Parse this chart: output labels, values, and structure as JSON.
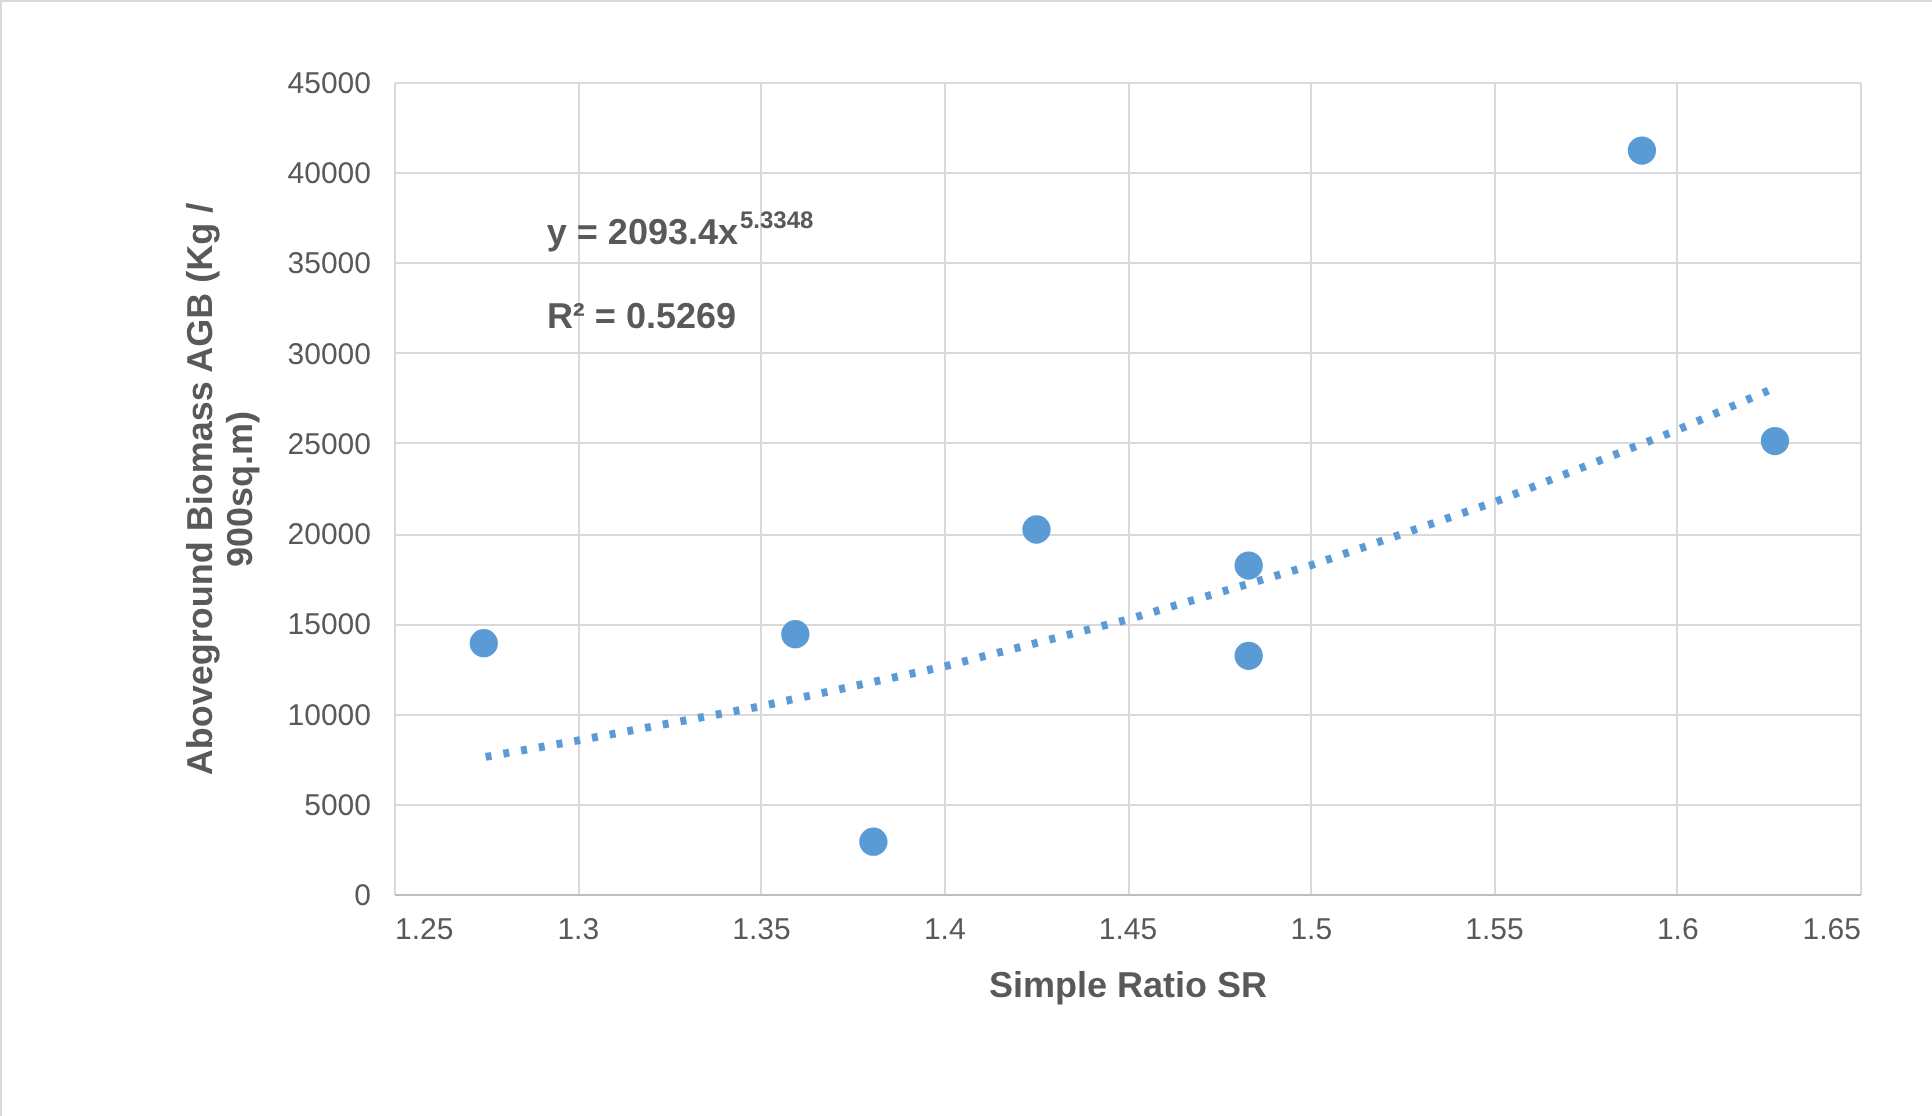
{
  "chart_data": {
    "type": "scatter",
    "xlabel": "Simple Ratio SR",
    "ylabel": "Aboveground Biomass AGB (Kg / 900sq.m)",
    "series": [
      {
        "type": "scatter",
        "color": "#5b9bd5",
        "marker": "circle",
        "x": [
          1.2745,
          1.3595,
          1.3808,
          1.4253,
          1.4832,
          1.4832,
          1.5905,
          1.6268
        ],
        "values": [
          13900,
          14400,
          2900,
          20200,
          18200,
          13200,
          41200,
          25100
        ]
      },
      {
        "type": "line",
        "color": "#5b9bd5",
        "line_style": "dotted",
        "x": [
          1.275,
          1.3,
          1.35,
          1.4,
          1.45,
          1.5,
          1.55,
          1.6,
          1.625
        ],
        "values": [
          7600,
          8500,
          10400,
          12600,
          15200,
          18200,
          21700,
          25700,
          27900
        ]
      }
    ],
    "xlim": [
      1.25,
      1.65
    ],
    "xticks": [
      1.25,
      1.3,
      1.35,
      1.4,
      1.45,
      1.5,
      1.55,
      1.6,
      1.65
    ],
    "ylim": [
      0,
      45000
    ],
    "yticks": [
      0,
      5000,
      10000,
      15000,
      20000,
      25000,
      30000,
      35000,
      40000,
      45000
    ],
    "grid": true,
    "annotations": [
      "y = 2093.4x$^{5.3348}$",
      "R² = 0.5269"
    ]
  }
}
